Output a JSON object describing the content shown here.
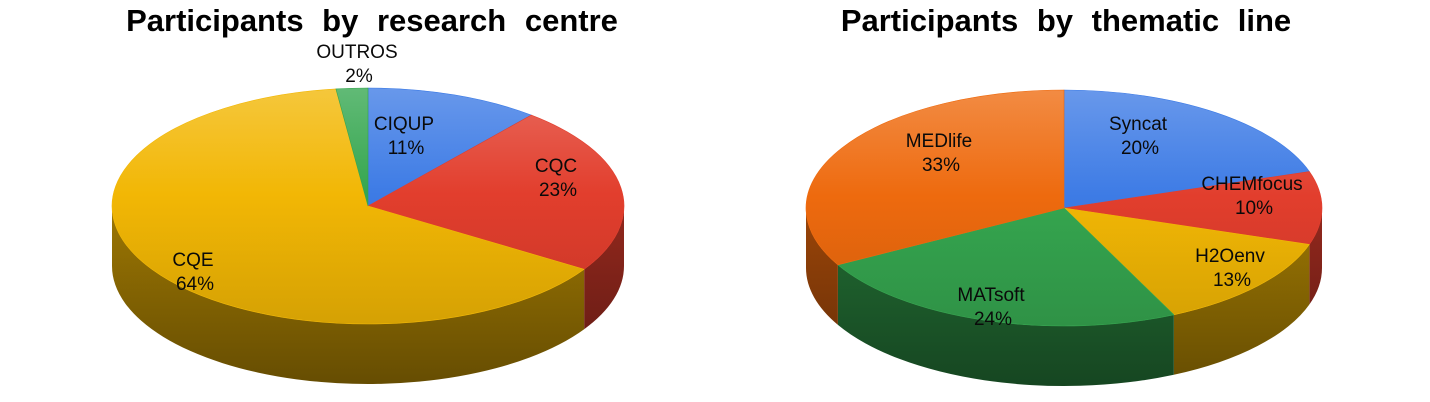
{
  "page": {
    "background_color": "#ffffff",
    "title_color": "#000000",
    "label_color": "#0a0a0a"
  },
  "chart_data": [
    {
      "type": "pie",
      "style": "3d",
      "title": "Participants by research centre",
      "legend": "none",
      "direction": "clockwise",
      "start_angle_deg": 0,
      "labels_position": "inside (OUTROS outside top)",
      "categories": [
        "CIQUP",
        "CQC",
        "CQE",
        "OUTROS"
      ],
      "values": [
        11,
        23,
        64,
        2
      ],
      "slices": [
        {
          "label": "CIQUP",
          "value": 11,
          "pct": "11%",
          "color": "#3d7be5"
        },
        {
          "label": "CQC",
          "value": 23,
          "pct": "23%",
          "color": "#e23e2d"
        },
        {
          "label": "CQE",
          "value": 64,
          "pct": "64%",
          "color": "#f2b705"
        },
        {
          "label": "OUTROS",
          "value": 2,
          "pct": "2%",
          "color": "#35a64f"
        }
      ]
    },
    {
      "type": "pie",
      "style": "3d",
      "title": "Participants by thematic line",
      "legend": "none",
      "direction": "clockwise",
      "start_angle_deg": 0,
      "labels_position": "inside",
      "categories": [
        "Syncat",
        "CHEMfocus",
        "H2Oenv",
        "MATsoft",
        "MEDlife"
      ],
      "values": [
        20,
        10,
        13,
        24,
        33
      ],
      "slices": [
        {
          "label": "Syncat",
          "value": 20,
          "pct": "20%",
          "color": "#3d7be5"
        },
        {
          "label": "CHEMfocus",
          "value": 10,
          "pct": "10%",
          "color": "#e23e2d"
        },
        {
          "label": "H2Oenv",
          "value": 13,
          "pct": "13%",
          "color": "#f2b705"
        },
        {
          "label": "MATsoft",
          "value": 24,
          "pct": "24%",
          "color": "#35a64f"
        },
        {
          "label": "MEDlife",
          "value": 33,
          "pct": "33%",
          "color": "#ee6a0e"
        }
      ]
    }
  ]
}
